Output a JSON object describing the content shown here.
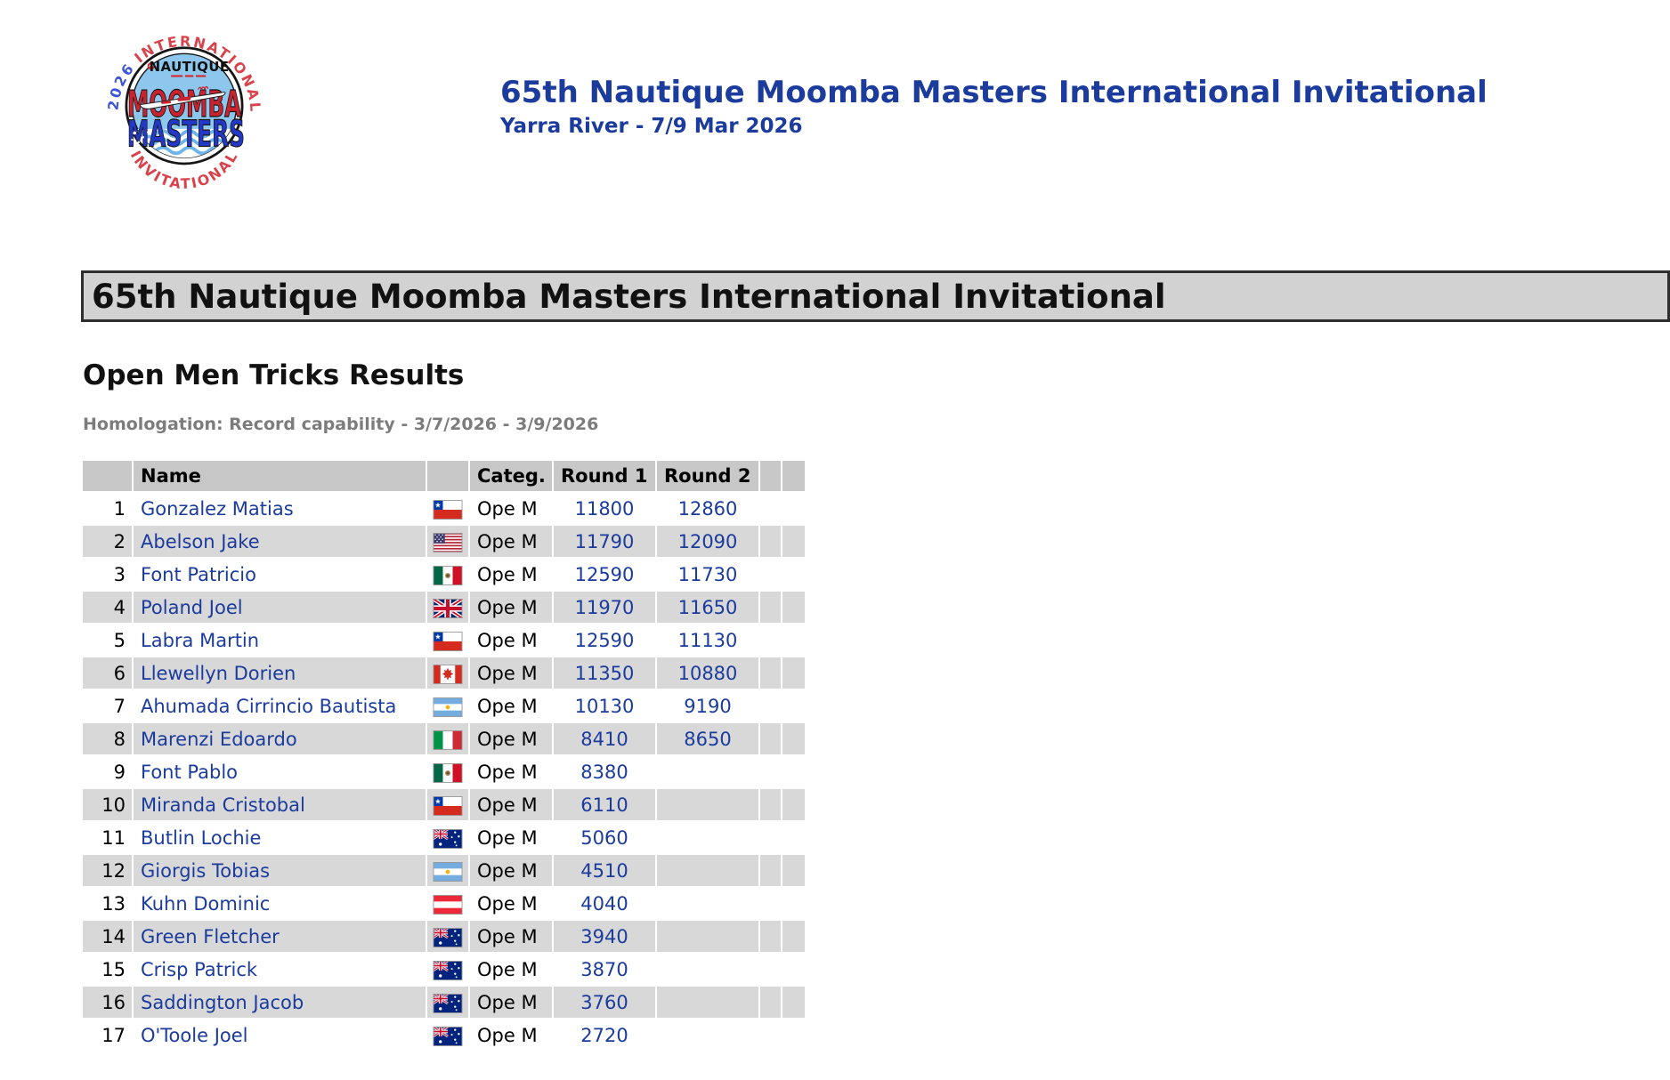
{
  "masthead": {
    "title": "65th Nautique Moomba Masters International Invitational",
    "subtitle": "Yarra River - 7/9 Mar 2026"
  },
  "banner": {
    "title": "65th Nautique Moomba Masters International Invitational"
  },
  "section": {
    "heading": "Open Men Tricks Results",
    "homologation": "Homologation: Record capability - 3/7/2026 - 3/9/2026"
  },
  "logo": {
    "year": "2026",
    "arc_top": "INTERNATIONAL",
    "brand": "NAUTIQUE",
    "word1": "MOOMBA",
    "word2": "MASTERS",
    "arc_bottom": "INVITATIONAL"
  },
  "results": {
    "headers": {
      "rank": "",
      "name": "Name",
      "flag": "",
      "category": "Categ.",
      "round1": "Round 1",
      "round2": "Round 2"
    },
    "rows": [
      {
        "rank": "1",
        "name": "Gonzalez Matias",
        "country": "CHI",
        "category": "Ope M",
        "round1": "11800",
        "round2": "12860"
      },
      {
        "rank": "2",
        "name": "Abelson Jake",
        "country": "USA",
        "category": "Ope M",
        "round1": "11790",
        "round2": "12090"
      },
      {
        "rank": "3",
        "name": "Font Patricio",
        "country": "MEX",
        "category": "Ope M",
        "round1": "12590",
        "round2": "11730"
      },
      {
        "rank": "4",
        "name": "Poland Joel",
        "country": "GBR",
        "category": "Ope M",
        "round1": "11970",
        "round2": "11650"
      },
      {
        "rank": "5",
        "name": "Labra Martin",
        "country": "CHI",
        "category": "Ope M",
        "round1": "12590",
        "round2": "11130"
      },
      {
        "rank": "6",
        "name": "Llewellyn Dorien",
        "country": "CAN",
        "category": "Ope M",
        "round1": "11350",
        "round2": "10880"
      },
      {
        "rank": "7",
        "name": "Ahumada Cirrincio Bautista",
        "country": "ARG",
        "category": "Ope M",
        "round1": "10130",
        "round2": "9190"
      },
      {
        "rank": "8",
        "name": "Marenzi Edoardo",
        "country": "ITA",
        "category": "Ope M",
        "round1": "8410",
        "round2": "8650"
      },
      {
        "rank": "9",
        "name": "Font Pablo",
        "country": "MEX",
        "category": "Ope M",
        "round1": "8380",
        "round2": ""
      },
      {
        "rank": "10",
        "name": "Miranda Cristobal",
        "country": "CHI",
        "category": "Ope M",
        "round1": "6110",
        "round2": ""
      },
      {
        "rank": "11",
        "name": "Butlin Lochie",
        "country": "AUS",
        "category": "Ope M",
        "round1": "5060",
        "round2": ""
      },
      {
        "rank": "12",
        "name": "Giorgis Tobias",
        "country": "ARG",
        "category": "Ope M",
        "round1": "4510",
        "round2": ""
      },
      {
        "rank": "13",
        "name": "Kuhn Dominic",
        "country": "AUT",
        "category": "Ope M",
        "round1": "4040",
        "round2": ""
      },
      {
        "rank": "14",
        "name": "Green Fletcher",
        "country": "AUS",
        "category": "Ope M",
        "round1": "3940",
        "round2": ""
      },
      {
        "rank": "15",
        "name": "Crisp Patrick",
        "country": "AUS",
        "category": "Ope M",
        "round1": "3870",
        "round2": ""
      },
      {
        "rank": "16",
        "name": "Saddington Jacob",
        "country": "AUS",
        "category": "Ope M",
        "round1": "3760",
        "round2": ""
      },
      {
        "rank": "17",
        "name": "O'Toole Joel",
        "country": "AUS",
        "category": "Ope M",
        "round1": "2720",
        "round2": ""
      }
    ]
  },
  "colors": {
    "title_blue": "#1b3b9d",
    "link_blue": "#1b3b9d",
    "banner_bg": "#d2d2d2",
    "banner_border": "#2e2e2e",
    "header_row_bg": "#c8c8c8",
    "alt_row_bg": "#d8d8d8",
    "homologation_gray": "#7c7c7c",
    "logo_red": "#c8232e",
    "logo_blue": "#2438c8",
    "logo_sky": "#8ec7ed"
  }
}
